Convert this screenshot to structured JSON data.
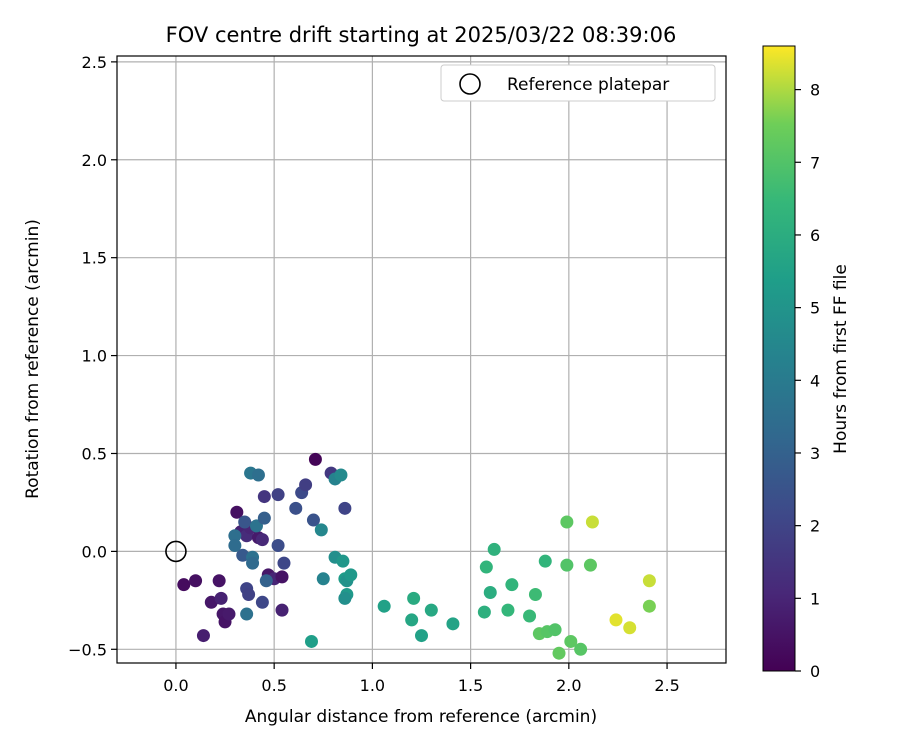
{
  "chart_data": {
    "type": "scatter",
    "title": "FOV centre drift starting at 2025/03/22 08:39:06",
    "xlabel": "Angular distance from reference (arcmin)",
    "ylabel": "Rotation from reference (arcmin)",
    "xlim": [
      -0.3,
      2.8
    ],
    "ylim": [
      -0.57,
      2.53
    ],
    "xticks": [
      0.0,
      0.5,
      1.0,
      1.5,
      2.0,
      2.5
    ],
    "xtick_labels": [
      "0.0",
      "0.5",
      "1.0",
      "1.5",
      "2.0",
      "2.5"
    ],
    "yticks": [
      -0.5,
      0.0,
      0.5,
      1.0,
      1.5,
      2.0,
      2.5
    ],
    "ytick_labels": [
      "−0.5",
      "0.0",
      "0.5",
      "1.0",
      "1.5",
      "2.0",
      "2.5"
    ],
    "grid": true,
    "legend": {
      "placement": "top-right",
      "entries": [
        "Reference platepar"
      ]
    },
    "reference_point": {
      "x": 0.0,
      "y": 0.0
    },
    "colorbar": {
      "label": "Hours from first FF file",
      "colormap": "viridis",
      "range": [
        0,
        8.6
      ],
      "ticks": [
        0,
        1,
        2,
        3,
        4,
        5,
        6,
        7,
        8
      ],
      "tick_labels": [
        "0",
        "1",
        "2",
        "3",
        "4",
        "5",
        "6",
        "7",
        "8"
      ]
    },
    "series": [
      {
        "points": [
          {
            "x": 0.71,
            "y": 0.47,
            "c": 0.1
          },
          {
            "x": 0.04,
            "y": -0.17,
            "c": 0.3
          },
          {
            "x": 0.1,
            "y": -0.15,
            "c": 0.4
          },
          {
            "x": 0.14,
            "y": -0.43,
            "c": 0.8
          },
          {
            "x": 0.18,
            "y": -0.26,
            "c": 0.6
          },
          {
            "x": 0.22,
            "y": -0.15,
            "c": 0.5
          },
          {
            "x": 0.23,
            "y": -0.24,
            "c": 0.9
          },
          {
            "x": 0.24,
            "y": -0.32,
            "c": 0.6
          },
          {
            "x": 0.25,
            "y": -0.36,
            "c": 0.5
          },
          {
            "x": 0.27,
            "y": -0.32,
            "c": 0.7
          },
          {
            "x": 0.31,
            "y": 0.2,
            "c": 0.4
          },
          {
            "x": 0.33,
            "y": 0.1,
            "c": 0.9
          },
          {
            "x": 0.36,
            "y": 0.08,
            "c": 1.2
          },
          {
            "x": 0.38,
            "y": 0.12,
            "c": 1.0
          },
          {
            "x": 0.42,
            "y": 0.07,
            "c": 0.7
          },
          {
            "x": 0.44,
            "y": 0.06,
            "c": 1.1
          },
          {
            "x": 0.45,
            "y": 0.28,
            "c": 1.5
          },
          {
            "x": 0.47,
            "y": -0.12,
            "c": 0.6
          },
          {
            "x": 0.5,
            "y": -0.14,
            "c": 1.0
          },
          {
            "x": 0.54,
            "y": -0.13,
            "c": 0.5
          },
          {
            "x": 0.54,
            "y": -0.3,
            "c": 0.9
          },
          {
            "x": 0.52,
            "y": 0.29,
            "c": 1.9
          },
          {
            "x": 0.55,
            "y": -0.06,
            "c": 2.1
          },
          {
            "x": 0.52,
            "y": 0.03,
            "c": 2.3
          },
          {
            "x": 0.61,
            "y": 0.22,
            "c": 2.4
          },
          {
            "x": 0.64,
            "y": 0.3,
            "c": 2.2
          },
          {
            "x": 0.66,
            "y": 0.34,
            "c": 1.8
          },
          {
            "x": 0.7,
            "y": 0.16,
            "c": 2.5
          },
          {
            "x": 0.79,
            "y": 0.4,
            "c": 1.6
          },
          {
            "x": 0.86,
            "y": 0.22,
            "c": 2.0
          },
          {
            "x": 0.36,
            "y": -0.19,
            "c": 2.0
          },
          {
            "x": 0.37,
            "y": -0.22,
            "c": 1.9
          },
          {
            "x": 0.44,
            "y": -0.26,
            "c": 2.1
          },
          {
            "x": 0.46,
            "y": -0.15,
            "c": 3.0
          },
          {
            "x": 0.35,
            "y": 0.15,
            "c": 2.6
          },
          {
            "x": 0.34,
            "y": -0.02,
            "c": 2.7
          },
          {
            "x": 0.3,
            "y": 0.08,
            "c": 3.5
          },
          {
            "x": 0.3,
            "y": 0.03,
            "c": 3.4
          },
          {
            "x": 0.39,
            "y": -0.03,
            "c": 3.6
          },
          {
            "x": 0.39,
            "y": -0.06,
            "c": 3.3
          },
          {
            "x": 0.41,
            "y": 0.13,
            "c": 3.7
          },
          {
            "x": 0.45,
            "y": 0.17,
            "c": 2.9
          },
          {
            "x": 0.36,
            "y": -0.32,
            "c": 3.6
          },
          {
            "x": 0.38,
            "y": 0.4,
            "c": 3.8
          },
          {
            "x": 0.42,
            "y": 0.39,
            "c": 3.5
          },
          {
            "x": 0.74,
            "y": 0.11,
            "c": 4.5
          },
          {
            "x": 0.81,
            "y": 0.37,
            "c": 4.3
          },
          {
            "x": 0.84,
            "y": 0.39,
            "c": 4.6
          },
          {
            "x": 0.75,
            "y": -0.14,
            "c": 4.3
          },
          {
            "x": 0.81,
            "y": -0.03,
            "c": 4.8
          },
          {
            "x": 0.85,
            "y": -0.05,
            "c": 5.1
          },
          {
            "x": 0.86,
            "y": -0.14,
            "c": 5.3
          },
          {
            "x": 0.87,
            "y": -0.15,
            "c": 4.9
          },
          {
            "x": 0.89,
            "y": -0.12,
            "c": 5.2
          },
          {
            "x": 0.87,
            "y": -0.22,
            "c": 5.2
          },
          {
            "x": 0.86,
            "y": -0.24,
            "c": 4.8
          },
          {
            "x": 0.69,
            "y": -0.46,
            "c": 5.4
          },
          {
            "x": 1.06,
            "y": -0.28,
            "c": 5.5
          },
          {
            "x": 1.21,
            "y": -0.24,
            "c": 5.9
          },
          {
            "x": 1.2,
            "y": -0.35,
            "c": 5.7
          },
          {
            "x": 1.25,
            "y": -0.43,
            "c": 5.5
          },
          {
            "x": 1.3,
            "y": -0.3,
            "c": 5.8
          },
          {
            "x": 1.41,
            "y": -0.37,
            "c": 5.6
          },
          {
            "x": 1.57,
            "y": -0.31,
            "c": 6.1
          },
          {
            "x": 1.58,
            "y": -0.08,
            "c": 6.3
          },
          {
            "x": 1.6,
            "y": -0.21,
            "c": 6.0
          },
          {
            "x": 1.62,
            "y": 0.01,
            "c": 6.2
          },
          {
            "x": 1.69,
            "y": -0.3,
            "c": 6.4
          },
          {
            "x": 1.71,
            "y": -0.17,
            "c": 6.3
          },
          {
            "x": 1.8,
            "y": -0.33,
            "c": 6.5
          },
          {
            "x": 1.83,
            "y": -0.22,
            "c": 6.6
          },
          {
            "x": 1.88,
            "y": -0.05,
            "c": 6.3
          },
          {
            "x": 1.85,
            "y": -0.42,
            "c": 7.2
          },
          {
            "x": 1.89,
            "y": -0.41,
            "c": 7.1
          },
          {
            "x": 1.93,
            "y": -0.4,
            "c": 7.0
          },
          {
            "x": 1.95,
            "y": -0.52,
            "c": 7.3
          },
          {
            "x": 1.99,
            "y": -0.07,
            "c": 7.0
          },
          {
            "x": 1.99,
            "y": 0.15,
            "c": 7.2
          },
          {
            "x": 2.01,
            "y": -0.46,
            "c": 7.2
          },
          {
            "x": 2.06,
            "y": -0.5,
            "c": 7.1
          },
          {
            "x": 2.11,
            "y": -0.07,
            "c": 7.2
          },
          {
            "x": 2.12,
            "y": 0.15,
            "c": 8.2
          },
          {
            "x": 2.24,
            "y": -0.35,
            "c": 8.4
          },
          {
            "x": 2.31,
            "y": -0.39,
            "c": 8.3
          },
          {
            "x": 2.41,
            "y": -0.28,
            "c": 7.6
          },
          {
            "x": 2.41,
            "y": -0.15,
            "c": 8.2
          }
        ]
      }
    ]
  }
}
